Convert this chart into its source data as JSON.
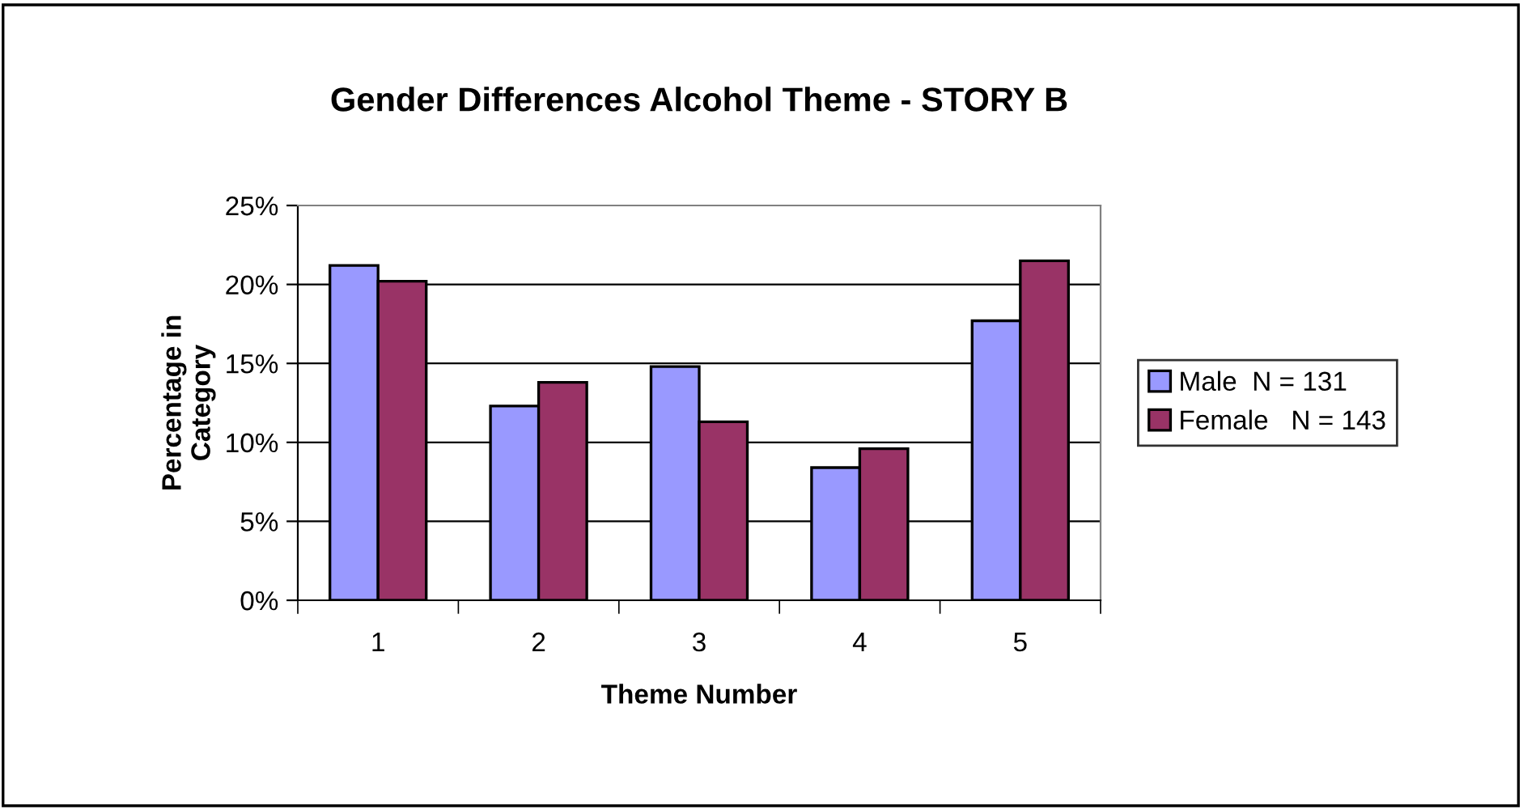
{
  "chart_data": {
    "type": "bar",
    "title": "Gender Differences Alcohol Theme - STORY B",
    "xlabel": "Theme Number",
    "ylabel": "Percentage in\nCategory",
    "categories": [
      "1",
      "2",
      "3",
      "4",
      "5"
    ],
    "series": [
      {
        "name": "Male  N = 131",
        "color": "#9999ff",
        "values": [
          21.2,
          12.3,
          14.8,
          8.4,
          17.7
        ]
      },
      {
        "name": "Female   N = 143",
        "color": "#993366",
        "values": [
          20.2,
          13.8,
          11.3,
          9.6,
          21.5
        ]
      }
    ],
    "ylim": [
      0,
      25
    ],
    "yticks": [
      {
        "value": 0,
        "label": "0%"
      },
      {
        "value": 5,
        "label": "5%"
      },
      {
        "value": 10,
        "label": "10%"
      },
      {
        "value": 15,
        "label": "15%"
      },
      {
        "value": 20,
        "label": "20%"
      },
      {
        "value": 25,
        "label": "25%"
      }
    ],
    "grid": "y",
    "legend": "right"
  }
}
